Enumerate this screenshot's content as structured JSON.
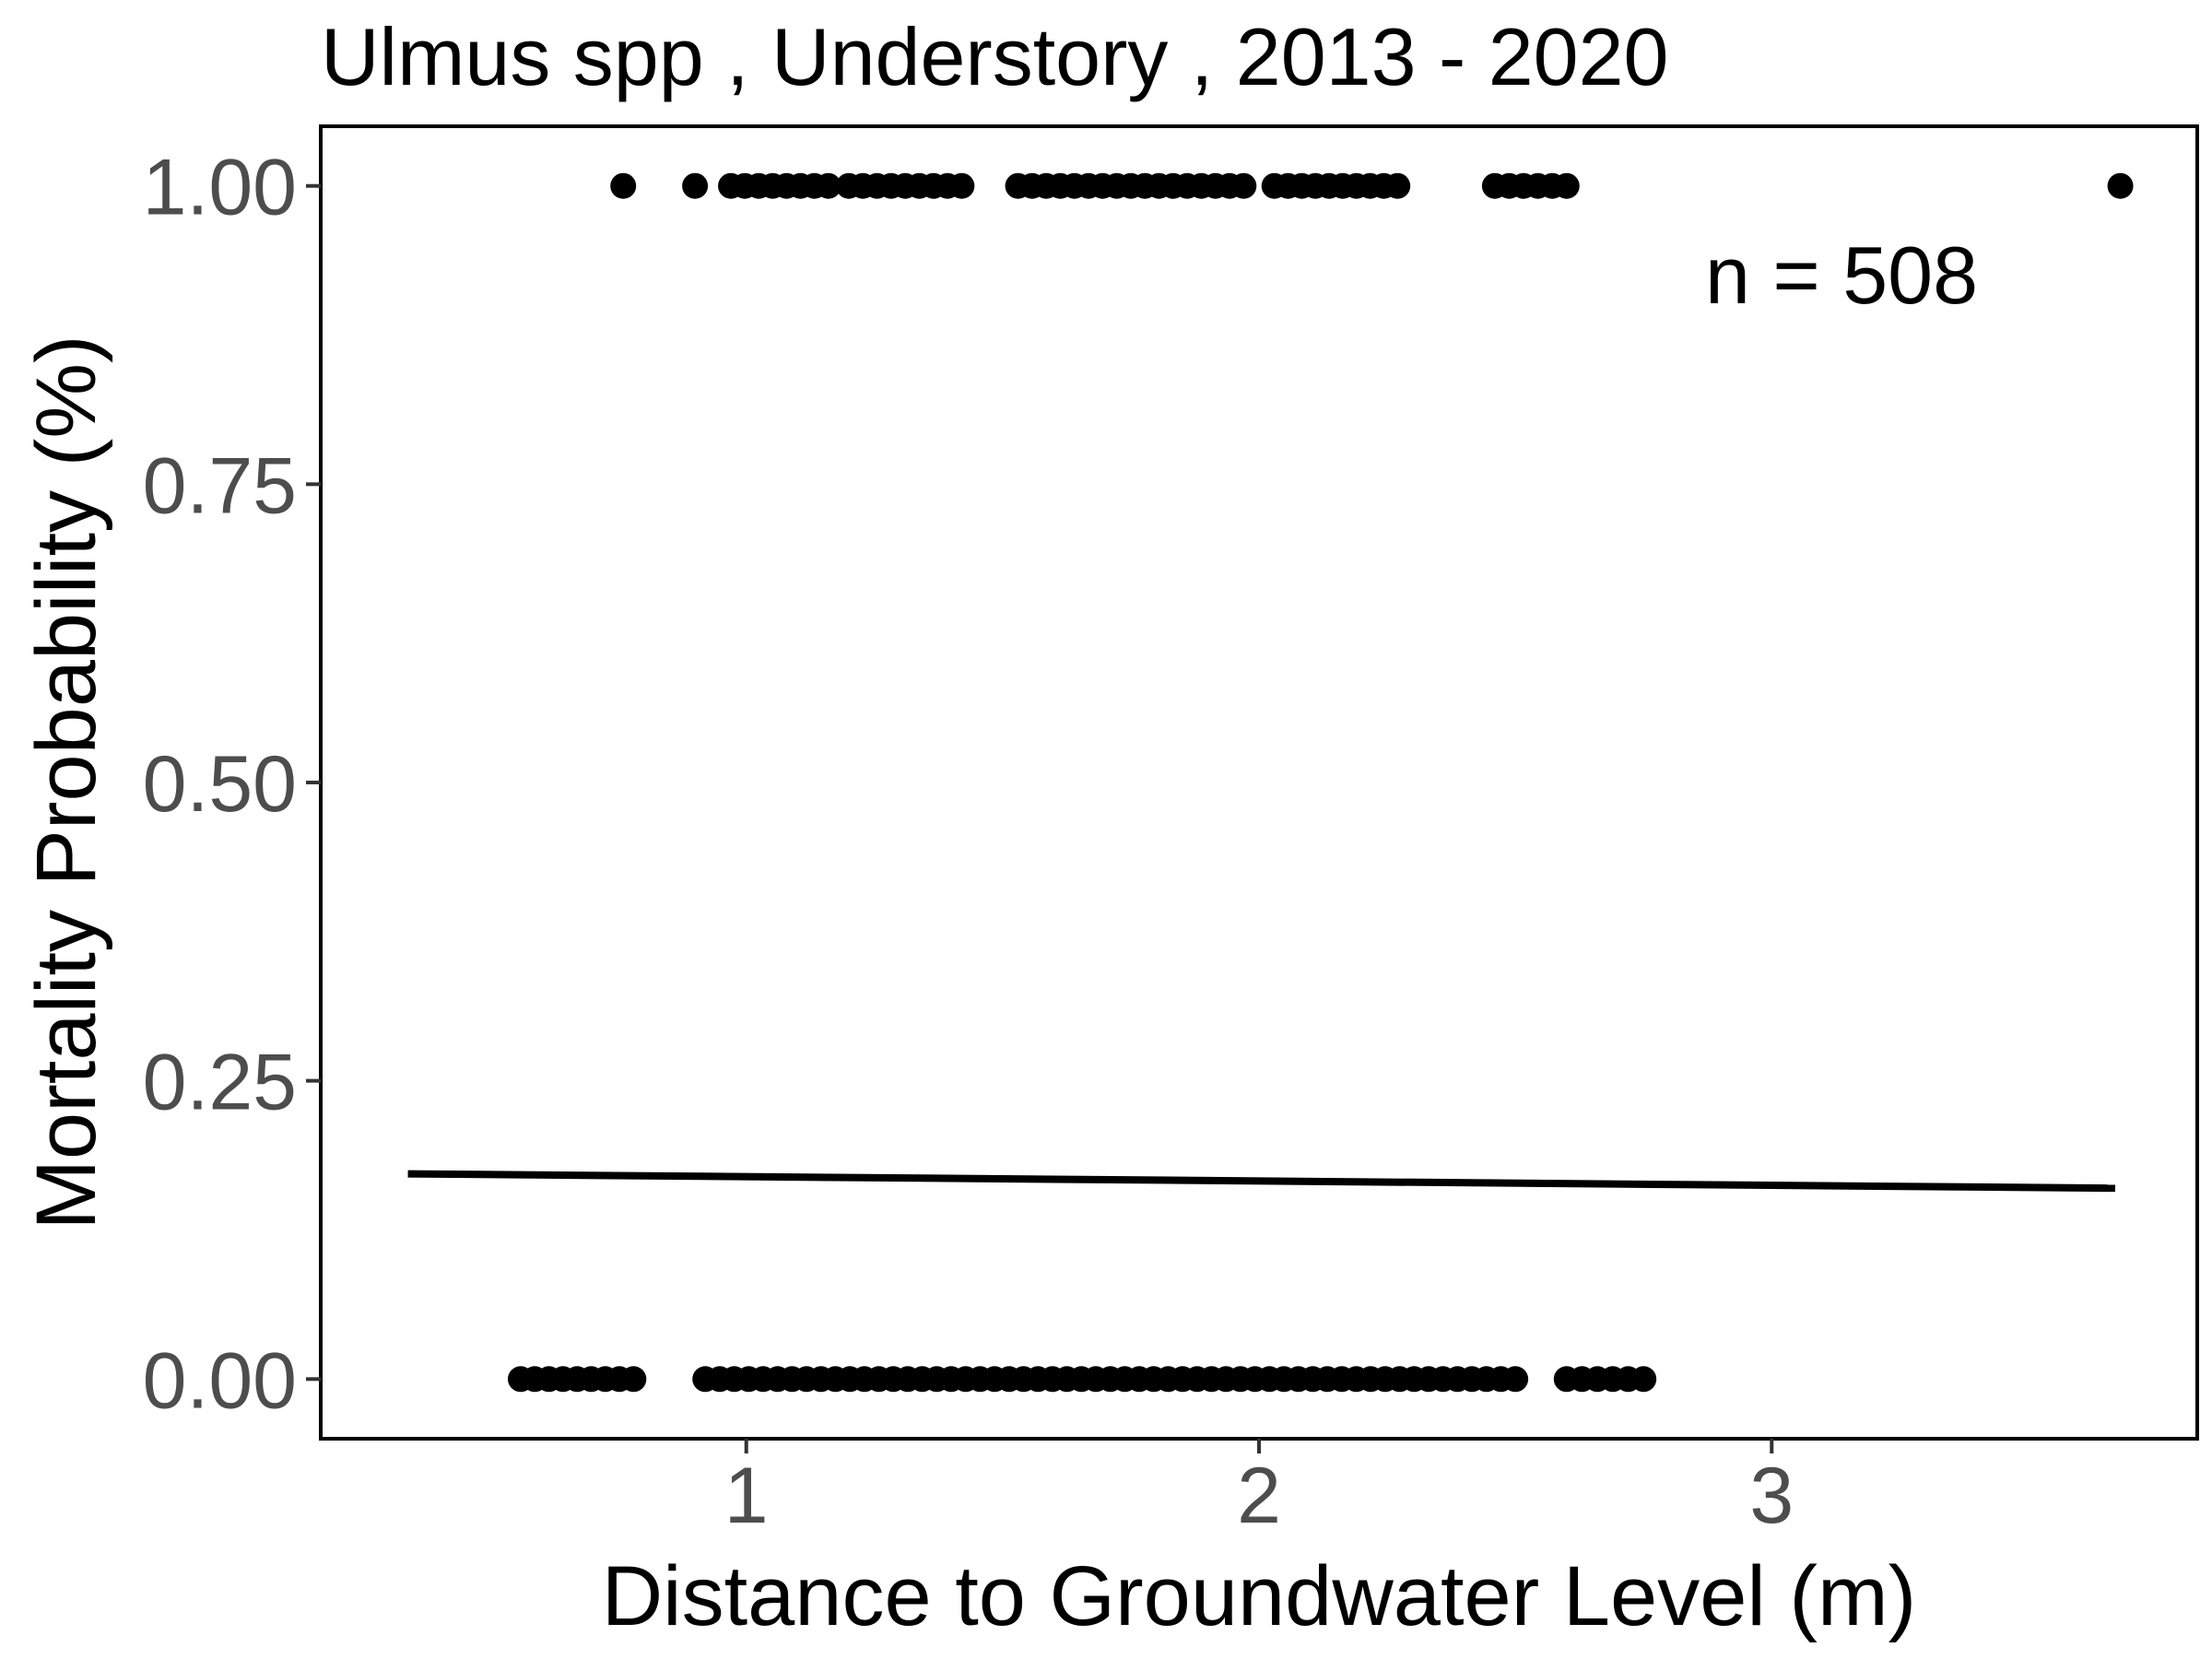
{
  "chart_data": {
    "type": "scatter",
    "title": "Ulmus spp , Understory , 2013 - 2020",
    "xlabel": "Distance to Groundwater Level (m)",
    "ylabel": "Mortality Probability (%)",
    "xlim": [
      0.17,
      3.83
    ],
    "ylim": [
      -0.05,
      1.05
    ],
    "x_ticks": [
      1,
      2,
      3
    ],
    "x_tick_labels": [
      "1",
      "2",
      "3"
    ],
    "y_ticks": [
      0,
      0.25,
      0.5,
      0.75,
      1.0
    ],
    "y_tick_labels": [
      "0.00",
      "0.25",
      "0.50",
      "0.75",
      "1.00"
    ],
    "grid": false,
    "annotation": "n =  508",
    "colors": {
      "points": "#000000",
      "fit_line": "#000000",
      "tick_text": "#4d4d4d",
      "panel_border": "#000000"
    },
    "series": [
      {
        "kind": "points",
        "segments": [
          {
            "y": 1,
            "x_start": 0.76,
            "x_end": 0.76
          },
          {
            "y": 1,
            "x_start": 0.9,
            "x_end": 0.9
          },
          {
            "y": 1,
            "x_start": 0.97,
            "x_end": 1.16
          },
          {
            "y": 1,
            "x_start": 1.2,
            "x_end": 1.42
          },
          {
            "y": 1,
            "x_start": 1.53,
            "x_end": 1.97
          },
          {
            "y": 1,
            "x_start": 2.03,
            "x_end": 2.27
          },
          {
            "y": 1,
            "x_start": 2.46,
            "x_end": 2.6
          },
          {
            "y": 1,
            "x_start": 3.68,
            "x_end": 3.68
          },
          {
            "y": 0,
            "x_start": 0.56,
            "x_end": 0.78
          },
          {
            "y": 0,
            "x_start": 0.92,
            "x_end": 2.5
          },
          {
            "y": 0,
            "x_start": 2.6,
            "x_end": 2.75
          }
        ]
      },
      {
        "kind": "line",
        "x": [
          0.34,
          3.67
        ],
        "y": [
          0.172,
          0.16
        ]
      }
    ]
  }
}
